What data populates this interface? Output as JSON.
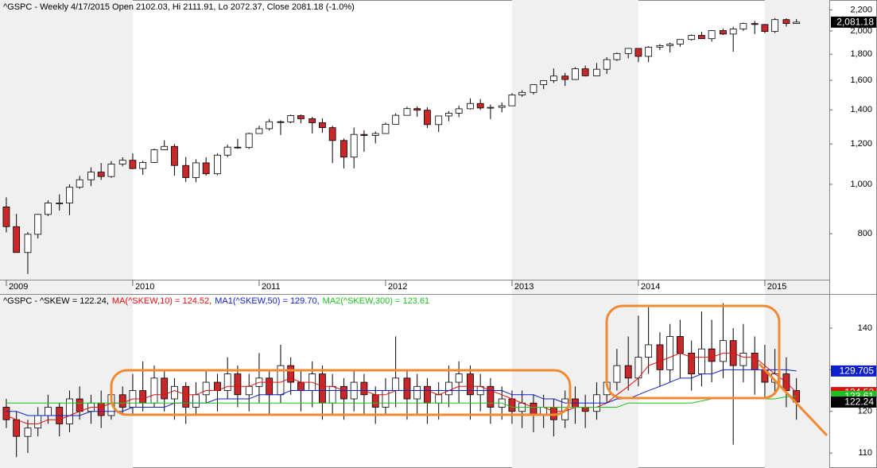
{
  "chart_data": [
    {
      "type": "candlestick",
      "title": "^GSPC - Weekly 4/17/2015 Open 2102.03, Hi 2111.91, Lo 2072.37, Close 2081.18 (-1.0%)",
      "x": [
        2009.0,
        2009.08,
        2009.17,
        2009.25,
        2009.33,
        2009.42,
        2009.5,
        2009.58,
        2009.67,
        2009.75,
        2009.83,
        2009.92,
        2010.0,
        2010.08,
        2010.17,
        2010.25,
        2010.33,
        2010.42,
        2010.5,
        2010.58,
        2010.67,
        2010.75,
        2010.83,
        2010.92,
        2011.0,
        2011.08,
        2011.17,
        2011.25,
        2011.33,
        2011.42,
        2011.5,
        2011.58,
        2011.67,
        2011.75,
        2011.83,
        2011.92,
        2012.0,
        2012.08,
        2012.17,
        2012.25,
        2012.33,
        2012.42,
        2012.5,
        2012.58,
        2012.67,
        2012.75,
        2012.83,
        2012.92,
        2013.0,
        2013.08,
        2013.17,
        2013.25,
        2013.33,
        2013.42,
        2013.5,
        2013.58,
        2013.67,
        2013.75,
        2013.83,
        2013.92,
        2014.0,
        2014.08,
        2014.17,
        2014.25,
        2014.33,
        2014.42,
        2014.5,
        2014.58,
        2014.67,
        2014.75,
        2014.83,
        2014.92,
        2015.0,
        2015.08,
        2015.17,
        2015.25
      ],
      "open": [
        903,
        826,
        735,
        798,
        873,
        919,
        919,
        987,
        1021,
        1057,
        1036,
        1096,
        1115,
        1074,
        1104,
        1169,
        1187,
        1089,
        1031,
        1102,
        1049,
        1141,
        1183,
        1181,
        1258,
        1286,
        1327,
        1326,
        1364,
        1345,
        1321,
        1292,
        1219,
        1131,
        1253,
        1247,
        1258,
        1312,
        1366,
        1408,
        1398,
        1310,
        1362,
        1379,
        1407,
        1441,
        1412,
        1416,
        1426,
        1498,
        1515,
        1569,
        1598,
        1631,
        1606,
        1686,
        1633,
        1682,
        1757,
        1806,
        1848,
        1783,
        1859,
        1872,
        1884,
        1924,
        1960,
        1931,
        2003,
        1972,
        2018,
        2068,
        2059,
        1995,
        2105,
        2068
      ],
      "high": [
        943,
        875,
        806,
        875,
        930,
        956,
        1000,
        1039,
        1080,
        1101,
        1111,
        1130,
        1150,
        1113,
        1175,
        1220,
        1200,
        1132,
        1120,
        1130,
        1150,
        1196,
        1228,
        1263,
        1303,
        1344,
        1335,
        1370,
        1371,
        1356,
        1347,
        1303,
        1230,
        1292,
        1277,
        1270,
        1322,
        1378,
        1420,
        1422,
        1416,
        1363,
        1392,
        1427,
        1475,
        1470,
        1434,
        1448,
        1510,
        1530,
        1570,
        1598,
        1688,
        1655,
        1698,
        1710,
        1730,
        1776,
        1814,
        1850,
        1850,
        1867,
        1884,
        1897,
        1925,
        1968,
        1992,
        2005,
        2019,
        2038,
        2075,
        2093,
        2064,
        2119,
        2117,
        2111
      ],
      "low": [
        805,
        741,
        667,
        783,
        866,
        888,
        870,
        980,
        992,
        1020,
        1030,
        1085,
        1071,
        1044,
        1101,
        1170,
        1040,
        1011,
        1010,
        1040,
        1042,
        1131,
        1175,
        1173,
        1257,
        1275,
        1250,
        1318,
        1318,
        1258,
        1262,
        1101,
        1075,
        1075,
        1158,
        1203,
        1260,
        1312,
        1365,
        1357,
        1290,
        1267,
        1330,
        1355,
        1402,
        1400,
        1343,
        1385,
        1426,
        1485,
        1501,
        1537,
        1581,
        1560,
        1604,
        1628,
        1633,
        1647,
        1746,
        1767,
        1737,
        1737,
        1834,
        1815,
        1862,
        1915,
        1930,
        1905,
        1964,
        1820,
        2001,
        1972,
        1980,
        1981,
        2040,
        2072
      ],
      "close": [
        826,
        735,
        798,
        873,
        919,
        919,
        987,
        1021,
        1057,
        1036,
        1096,
        1115,
        1074,
        1104,
        1169,
        1187,
        1089,
        1031,
        1102,
        1049,
        1141,
        1183,
        1181,
        1258,
        1286,
        1327,
        1326,
        1364,
        1345,
        1321,
        1292,
        1219,
        1131,
        1253,
        1247,
        1258,
        1312,
        1366,
        1408,
        1398,
        1310,
        1362,
        1379,
        1407,
        1441,
        1412,
        1416,
        1426,
        1498,
        1515,
        1569,
        1598,
        1631,
        1606,
        1686,
        1633,
        1682,
        1757,
        1806,
        1848,
        1783,
        1859,
        1872,
        1884,
        1924,
        1960,
        1931,
        2003,
        1972,
        2018,
        2068,
        2059,
        1995,
        2105,
        2068,
        2081.18
      ],
      "up_color": "#ffffff",
      "down_color": "#c8282a",
      "log_scale": true,
      "ylim": [
        650,
        2300
      ],
      "yticks": [
        800,
        {
          "value": 1000,
          "label": "1,000"
        },
        {
          "value": 1200,
          "label": "1,200"
        },
        {
          "value": 1400,
          "label": "1,400"
        },
        {
          "value": 1600,
          "label": "1,600"
        },
        {
          "value": 1800,
          "label": "1,800"
        },
        {
          "value": 2000,
          "label": "2,000"
        },
        {
          "value": 2200,
          "label": "2,200"
        }
      ],
      "xlim": [
        2008.95,
        2015.51
      ],
      "xticks": [
        2009,
        2010,
        2011,
        2012,
        2013,
        2014,
        2015
      ],
      "last_price": {
        "value": 2081.18,
        "label": "2,081.18"
      }
    },
    {
      "type": "candlestick",
      "legend": "^GSPC - ^SKEW = 122.24,",
      "x": [
        2009.0,
        2009.08,
        2009.17,
        2009.25,
        2009.33,
        2009.42,
        2009.5,
        2009.58,
        2009.67,
        2009.75,
        2009.83,
        2009.92,
        2010.0,
        2010.08,
        2010.17,
        2010.25,
        2010.33,
        2010.42,
        2010.5,
        2010.58,
        2010.67,
        2010.75,
        2010.83,
        2010.92,
        2011.0,
        2011.08,
        2011.17,
        2011.25,
        2011.33,
        2011.42,
        2011.5,
        2011.58,
        2011.67,
        2011.75,
        2011.83,
        2011.92,
        2012.0,
        2012.08,
        2012.17,
        2012.25,
        2012.33,
        2012.42,
        2012.5,
        2012.58,
        2012.67,
        2012.75,
        2012.83,
        2012.92,
        2013.0,
        2013.08,
        2013.17,
        2013.25,
        2013.33,
        2013.42,
        2013.5,
        2013.58,
        2013.67,
        2013.75,
        2013.83,
        2013.92,
        2014.0,
        2014.08,
        2014.17,
        2014.25,
        2014.33,
        2014.42,
        2014.5,
        2014.58,
        2014.67,
        2014.75,
        2014.83,
        2014.92,
        2015.0,
        2015.08,
        2015.17,
        2015.25
      ],
      "open": [
        121,
        118,
        114,
        116,
        119,
        121,
        117,
        123,
        120,
        122,
        119,
        124,
        121,
        125,
        122,
        128,
        123,
        126,
        121,
        124,
        127,
        125,
        129,
        124,
        126,
        128,
        124,
        131,
        127,
        125,
        129,
        122,
        126,
        123,
        127,
        124,
        121,
        125,
        128,
        123,
        126,
        122,
        124,
        127,
        129,
        124,
        126,
        121,
        123,
        120,
        122,
        119,
        121,
        118,
        123,
        121,
        120,
        124,
        127,
        131,
        128,
        133,
        136,
        130,
        138,
        134,
        129,
        135,
        132,
        137,
        131,
        134,
        130,
        127,
        129,
        125
      ],
      "high": [
        123,
        120,
        118,
        121,
        124,
        122,
        125,
        126,
        124,
        125,
        127,
        126,
        129,
        132,
        131,
        130,
        128,
        127,
        127,
        130,
        129,
        133,
        131,
        129,
        134,
        130,
        136,
        133,
        130,
        132,
        131,
        129,
        128,
        130,
        129,
        126,
        128,
        138,
        130,
        129,
        128,
        127,
        131,
        132,
        131,
        129,
        128,
        126,
        125,
        125,
        124,
        124,
        123,
        125,
        126,
        124,
        127,
        130,
        135,
        138,
        143,
        145,
        139,
        141,
        142,
        137,
        144,
        142,
        146,
        140,
        141,
        138,
        136,
        135,
        133,
        128
      ],
      "low": [
        116,
        109,
        110,
        114,
        117,
        114,
        115,
        118,
        117,
        116,
        118,
        119,
        119,
        120,
        121,
        120,
        118,
        117,
        119,
        122,
        120,
        123,
        121,
        120,
        122,
        119,
        122,
        124,
        120,
        121,
        118,
        119,
        118,
        120,
        119,
        117,
        119,
        121,
        118,
        119,
        117,
        118,
        121,
        122,
        118,
        120,
        117,
        118,
        117,
        116,
        115,
        116,
        114,
        116,
        117,
        116,
        118,
        122,
        125,
        125,
        126,
        129,
        126,
        127,
        128,
        125,
        126,
        127,
        128,
        112,
        127,
        124,
        123,
        124,
        121,
        118
      ],
      "close": [
        118,
        114,
        116,
        119,
        121,
        117,
        123,
        120,
        122,
        119,
        124,
        121,
        125,
        122,
        128,
        123,
        126,
        121,
        124,
        127,
        125,
        129,
        124,
        126,
        128,
        124,
        131,
        127,
        125,
        129,
        122,
        126,
        123,
        127,
        124,
        121,
        125,
        128,
        123,
        126,
        122,
        124,
        127,
        129,
        124,
        126,
        121,
        123,
        120,
        122,
        119,
        121,
        118,
        123,
        121,
        120,
        124,
        127,
        131,
        128,
        133,
        136,
        130,
        138,
        134,
        129,
        135,
        132,
        137,
        131,
        134,
        130,
        127,
        129,
        125,
        122.24
      ],
      "up_color": "#ffffff",
      "down_color": "#c8282a",
      "last_price": 122.24,
      "series": [
        {
          "name": "MA(^SKEW,10) = 124.52,",
          "color": "#e01010",
          "tag": 124.52,
          "values": [
            119,
            118,
            117,
            117,
            118,
            118,
            119,
            120,
            121,
            121,
            122,
            122,
            123,
            123,
            124,
            124,
            125,
            124,
            124,
            125,
            125,
            126,
            126,
            126,
            127,
            127,
            127,
            128,
            127,
            127,
            126,
            126,
            125,
            125,
            125,
            124,
            124,
            125,
            125,
            125,
            125,
            124,
            125,
            126,
            126,
            126,
            125,
            124,
            123,
            122,
            121,
            121,
            120,
            120,
            121,
            121,
            121,
            122,
            124,
            126,
            128,
            131,
            132,
            133,
            134,
            133,
            133,
            133,
            134,
            134,
            133,
            133,
            131,
            129,
            127,
            124.52
          ]
        },
        {
          "name": "MA1(^SKEW,50) = 129.70,",
          "color": "#1020c8",
          "tag": 129.705,
          "values": [
            120,
            120,
            119,
            119,
            119,
            119,
            119,
            119,
            120,
            120,
            120,
            120,
            121,
            121,
            121,
            121,
            122,
            122,
            122,
            122,
            123,
            123,
            123,
            123,
            124,
            124,
            124,
            125,
            125,
            125,
            125,
            125,
            125,
            125,
            125,
            125,
            125,
            125,
            125,
            125,
            125,
            125,
            125,
            125,
            125,
            125,
            125,
            125,
            124,
            124,
            124,
            123,
            123,
            122,
            122,
            122,
            122,
            122,
            123,
            123,
            124,
            125,
            126,
            127,
            128,
            128,
            129,
            129,
            130,
            130,
            130,
            130,
            130,
            130,
            130,
            129.7
          ]
        },
        {
          "name": "MA2(^SKEW,300) = 123.61",
          "color": "#20c020",
          "tag": 123.61,
          "values": [
            122,
            122,
            122,
            122,
            122,
            122,
            122,
            122,
            122,
            122,
            122,
            122,
            122,
            122,
            122,
            122,
            122,
            122,
            122,
            122,
            122,
            122,
            122,
            122,
            122,
            122,
            122,
            122,
            122,
            122,
            122,
            122,
            122,
            122,
            122,
            122,
            122,
            122,
            122,
            122,
            122,
            122,
            122,
            122,
            122,
            122,
            122,
            122,
            121,
            121,
            121,
            121,
            121,
            121,
            121,
            121,
            121,
            121,
            121,
            122,
            122,
            122,
            122,
            122,
            122,
            122,
            122.5,
            123,
            123,
            123,
            123,
            123,
            123,
            123,
            123.5,
            123.61
          ]
        }
      ],
      "ylim": [
        106.4,
        148.2
      ],
      "yticks": [
        110,
        120,
        130,
        140
      ],
      "xlim": [
        2008.95,
        2015.51
      ]
    }
  ]
}
